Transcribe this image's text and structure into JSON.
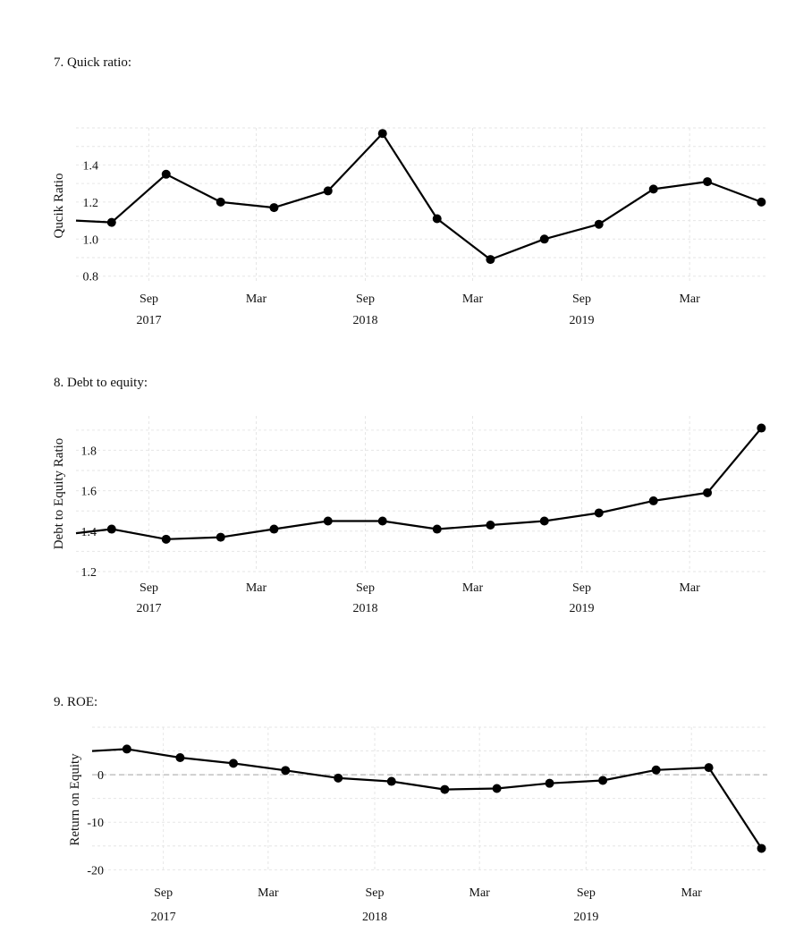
{
  "sections": [
    {
      "title": "7.  Quick ratio:"
    },
    {
      "title": "8. Debt to equity:"
    },
    {
      "title": "9. ROE:"
    }
  ],
  "chart_data": [
    {
      "type": "line",
      "ylabel": "Qucik Ratio",
      "ylim": [
        0.76,
        1.6
      ],
      "yticks": [
        0.8,
        1.0,
        1.2,
        1.4
      ],
      "ytick_labels": [
        "0.8",
        "1.0",
        "1.2",
        "1.4"
      ],
      "xlim": [
        "2017-05-01",
        "2020-07-10"
      ],
      "xticks": [
        {
          "date": "2017-09-01",
          "label": [
            "Sep",
            "2017"
          ]
        },
        {
          "date": "2018-03-01",
          "label": [
            "Mar",
            ""
          ]
        },
        {
          "date": "2018-09-01",
          "label": [
            "Sep",
            "2018"
          ]
        },
        {
          "date": "2019-03-01",
          "label": [
            "Mar",
            ""
          ]
        },
        {
          "date": "2019-09-01",
          "label": [
            "Sep",
            "2019"
          ]
        },
        {
          "date": "2020-03-01",
          "label": [
            "Mar",
            ""
          ]
        }
      ],
      "grid": true,
      "lead_in": {
        "date": "2017-05-01",
        "value": 1.1
      },
      "x": [
        "2017-06-30",
        "2017-09-30",
        "2017-12-31",
        "2018-03-31",
        "2018-06-30",
        "2018-09-30",
        "2018-12-31",
        "2019-03-31",
        "2019-06-30",
        "2019-09-30",
        "2019-12-31",
        "2020-03-31",
        "2020-06-30"
      ],
      "series": [
        {
          "values": [
            1.09,
            1.35,
            1.2,
            1.17,
            1.26,
            1.57,
            1.11,
            0.89,
            1.0,
            1.08,
            1.27,
            1.31,
            1.2
          ]
        }
      ]
    },
    {
      "type": "line",
      "ylabel": "Debt to Equity Ratio",
      "ylim": [
        1.2,
        1.97
      ],
      "yticks": [
        1.2,
        1.4,
        1.6,
        1.8
      ],
      "ytick_labels": [
        "1.2",
        "1.4",
        "1.6",
        "1.8"
      ],
      "xlim": [
        "2017-05-01",
        "2020-07-10"
      ],
      "xticks": [
        {
          "date": "2017-09-01",
          "label": [
            "Sep",
            "2017"
          ]
        },
        {
          "date": "2018-03-01",
          "label": [
            "Mar",
            ""
          ]
        },
        {
          "date": "2018-09-01",
          "label": [
            "Sep",
            "2018"
          ]
        },
        {
          "date": "2019-03-01",
          "label": [
            "Mar",
            ""
          ]
        },
        {
          "date": "2019-09-01",
          "label": [
            "Sep",
            "2019"
          ]
        },
        {
          "date": "2020-03-01",
          "label": [
            "Mar",
            ""
          ]
        }
      ],
      "grid": true,
      "lead_in": {
        "date": "2017-05-01",
        "value": 1.39
      },
      "x": [
        "2017-06-30",
        "2017-09-30",
        "2017-12-31",
        "2018-03-31",
        "2018-06-30",
        "2018-09-30",
        "2018-12-31",
        "2019-03-31",
        "2019-06-30",
        "2019-09-30",
        "2019-12-31",
        "2020-03-31",
        "2020-06-30"
      ],
      "series": [
        {
          "values": [
            1.41,
            1.36,
            1.37,
            1.41,
            1.45,
            1.45,
            1.41,
            1.43,
            1.45,
            1.49,
            1.55,
            1.59,
            1.91
          ]
        }
      ]
    },
    {
      "type": "line",
      "ylabel": "Return on Equity",
      "ylim": [
        -20.5,
        10
      ],
      "yticks": [
        -20,
        -10,
        0
      ],
      "ytick_labels": [
        "-20",
        "-10",
        "0"
      ],
      "zero_line": true,
      "xlim": [
        "2017-05-01",
        "2020-07-10"
      ],
      "xticks": [
        {
          "date": "2017-09-01",
          "label": [
            "Sep",
            "2017"
          ]
        },
        {
          "date": "2018-03-01",
          "label": [
            "Mar",
            ""
          ]
        },
        {
          "date": "2018-09-01",
          "label": [
            "Sep",
            "2018"
          ]
        },
        {
          "date": "2019-03-01",
          "label": [
            "Mar",
            ""
          ]
        },
        {
          "date": "2019-09-01",
          "label": [
            "Sep",
            "2019"
          ]
        },
        {
          "date": "2020-03-01",
          "label": [
            "Mar",
            ""
          ]
        }
      ],
      "grid": true,
      "lead_in": {
        "date": "2017-05-01",
        "value": 5
      },
      "x": [
        "2017-06-30",
        "2017-09-30",
        "2017-12-31",
        "2018-03-31",
        "2018-06-30",
        "2018-09-30",
        "2018-12-31",
        "2019-03-31",
        "2019-06-30",
        "2019-09-30",
        "2019-12-31",
        "2020-03-31",
        "2020-06-30"
      ],
      "series": [
        {
          "values": [
            5.4,
            3.6,
            2.4,
            0.9,
            -0.7,
            -1.4,
            -3.1,
            -2.9,
            -1.8,
            -1.2,
            1.0,
            1.5,
            -15.5
          ]
        }
      ]
    }
  ]
}
